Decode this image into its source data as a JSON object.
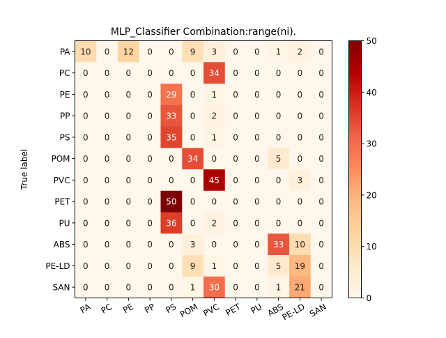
{
  "chart_data": {
    "type": "heatmap",
    "title": "MLP_Classifier Combination:range(ni).",
    "xlabel": "",
    "ylabel": "True label",
    "x_categories": [
      "PA",
      "PC",
      "PE",
      "PP",
      "PS",
      "POM",
      "PVC",
      "PET",
      "PU",
      "ABS",
      "PE-LD",
      "SAN"
    ],
    "y_categories": [
      "PA",
      "PC",
      "PE",
      "PP",
      "PS",
      "POM",
      "PVC",
      "PET",
      "PU",
      "ABS",
      "PE-LD",
      "SAN"
    ],
    "values": [
      [
        10,
        0,
        12,
        0,
        0,
        9,
        3,
        0,
        0,
        1,
        2,
        0
      ],
      [
        0,
        0,
        0,
        0,
        0,
        0,
        34,
        0,
        0,
        0,
        0,
        0
      ],
      [
        0,
        0,
        0,
        0,
        29,
        0,
        1,
        0,
        0,
        0,
        0,
        0
      ],
      [
        0,
        0,
        0,
        0,
        33,
        0,
        2,
        0,
        0,
        0,
        0,
        0
      ],
      [
        0,
        0,
        0,
        0,
        35,
        0,
        1,
        0,
        0,
        0,
        0,
        0
      ],
      [
        0,
        0,
        0,
        0,
        0,
        34,
        0,
        0,
        0,
        5,
        0,
        0
      ],
      [
        0,
        0,
        0,
        0,
        0,
        0,
        45,
        0,
        0,
        0,
        3,
        0
      ],
      [
        0,
        0,
        0,
        0,
        50,
        0,
        0,
        0,
        0,
        0,
        0,
        0
      ],
      [
        0,
        0,
        0,
        0,
        36,
        0,
        2,
        0,
        0,
        0,
        0,
        0
      ],
      [
        0,
        0,
        0,
        0,
        0,
        3,
        0,
        0,
        0,
        33,
        10,
        0
      ],
      [
        0,
        0,
        0,
        0,
        0,
        9,
        1,
        0,
        0,
        5,
        19,
        0
      ],
      [
        0,
        0,
        0,
        0,
        0,
        1,
        30,
        0,
        0,
        1,
        21,
        0
      ]
    ],
    "colormap": "OrRd",
    "colorbar": {
      "range": [
        0,
        50
      ],
      "ticks": [
        "0",
        "10",
        "20",
        "30",
        "40",
        "50"
      ]
    },
    "grid": false
  }
}
